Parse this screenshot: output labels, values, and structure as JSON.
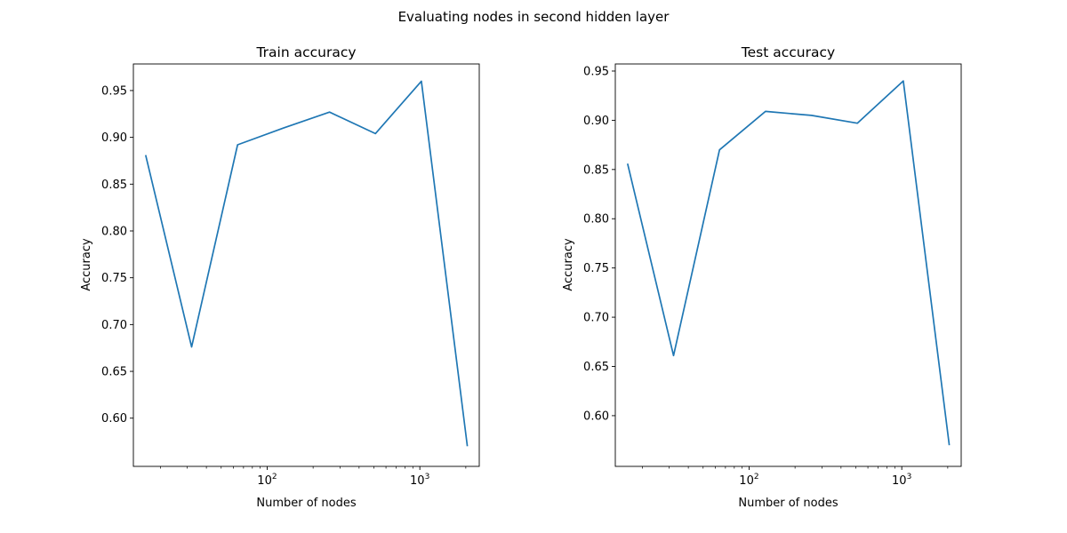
{
  "figure": {
    "suptitle": "Evaluating nodes in second hidden layer"
  },
  "chart_data": [
    {
      "type": "line",
      "title": "Train accuracy",
      "xlabel": "Number of nodes",
      "ylabel": "Accuracy",
      "xscale": "log",
      "xlim": [
        13.3,
        2450
      ],
      "ylim": [
        0.5485,
        0.9784
      ],
      "x": [
        16,
        32,
        64,
        128,
        256,
        512,
        1024,
        2048
      ],
      "yticks": [
        "0.60",
        "0.65",
        "0.70",
        "0.75",
        "0.80",
        "0.85",
        "0.90",
        "0.95"
      ],
      "xtick_labels": [
        {
          "value": 100,
          "base": "10",
          "exp": "2"
        },
        {
          "value": 1000,
          "base": "10",
          "exp": "3"
        }
      ],
      "series": [
        {
          "color": "#1f77b4",
          "values": [
            0.881,
            0.676,
            0.892,
            0.91,
            0.927,
            0.904,
            0.96,
            0.57
          ]
        }
      ]
    },
    {
      "type": "line",
      "title": "Test accuracy",
      "xlabel": "Number of nodes",
      "ylabel": "Accuracy",
      "xscale": "log",
      "xlim": [
        13.3,
        2450
      ],
      "ylim": [
        0.5485,
        0.9572
      ],
      "x": [
        16,
        32,
        64,
        128,
        256,
        512,
        1024,
        2048
      ],
      "yticks": [
        "0.60",
        "0.65",
        "0.70",
        "0.75",
        "0.80",
        "0.85",
        "0.90",
        "0.95"
      ],
      "xtick_labels": [
        {
          "value": 100,
          "base": "10",
          "exp": "2"
        },
        {
          "value": 1000,
          "base": "10",
          "exp": "3"
        }
      ],
      "series": [
        {
          "color": "#1f77b4",
          "values": [
            0.856,
            0.661,
            0.87,
            0.909,
            0.905,
            0.897,
            0.94,
            0.57
          ]
        }
      ]
    }
  ]
}
